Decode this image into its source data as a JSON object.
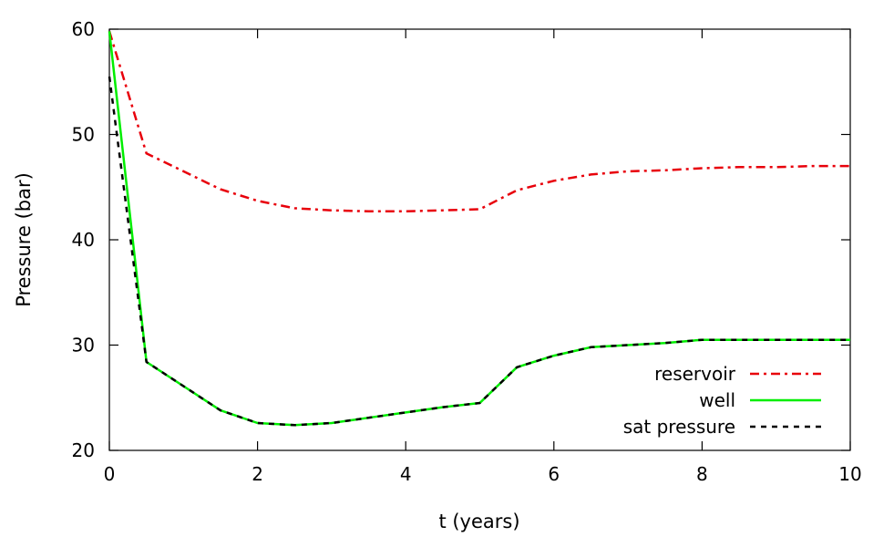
{
  "chart_data": {
    "type": "line",
    "xlabel": "t (years)",
    "ylabel": "Pressure (bar)",
    "xlim": [
      0,
      10
    ],
    "ylim": [
      20,
      60
    ],
    "xticks": [
      "0",
      "2",
      "4",
      "6",
      "8",
      "10"
    ],
    "yticks": [
      "20",
      "30",
      "40",
      "50",
      "60"
    ],
    "grid": false,
    "legend_position": "bottom-right",
    "series": [
      {
        "name": "reservoir",
        "color": "#e8000b",
        "style": "dash-dot",
        "x": [
          0,
          0.5,
          1,
          1.5,
          2,
          2.5,
          3,
          3.5,
          4,
          4.5,
          5,
          5.5,
          6,
          6.5,
          7,
          7.5,
          8,
          8.5,
          9,
          9.5,
          10
        ],
        "y": [
          59.8,
          48.2,
          46.5,
          44.8,
          43.7,
          43.0,
          42.8,
          42.7,
          42.7,
          42.8,
          42.9,
          44.7,
          45.6,
          46.2,
          46.5,
          46.6,
          46.8,
          46.9,
          46.9,
          47.0,
          47.0
        ]
      },
      {
        "name": "well",
        "color": "#00ee00",
        "style": "solid",
        "x": [
          0,
          0.5,
          1,
          1.5,
          2,
          2.5,
          3,
          3.5,
          4,
          4.5,
          5,
          5.5,
          6,
          6.5,
          7,
          7.5,
          8,
          8.5,
          9,
          9.5,
          10
        ],
        "y": [
          59.8,
          28.4,
          26.1,
          23.8,
          22.6,
          22.4,
          22.6,
          23.1,
          23.6,
          24.1,
          24.5,
          27.9,
          29.0,
          29.8,
          30.0,
          30.2,
          30.5,
          30.5,
          30.5,
          30.5,
          30.5
        ]
      },
      {
        "name": "sat pressure",
        "color": "#000000",
        "style": "dashed",
        "x": [
          0,
          0.5,
          1,
          1.5,
          2,
          2.5,
          3,
          3.5,
          4,
          4.5,
          5,
          5.5,
          6,
          6.5,
          7,
          7.5,
          8,
          8.5,
          9,
          9.5,
          10
        ],
        "y": [
          55.5,
          28.4,
          26.1,
          23.8,
          22.6,
          22.4,
          22.6,
          23.1,
          23.6,
          24.1,
          24.5,
          27.9,
          29.0,
          29.8,
          30.0,
          30.2,
          30.5,
          30.5,
          30.5,
          30.5,
          30.5
        ]
      }
    ]
  }
}
